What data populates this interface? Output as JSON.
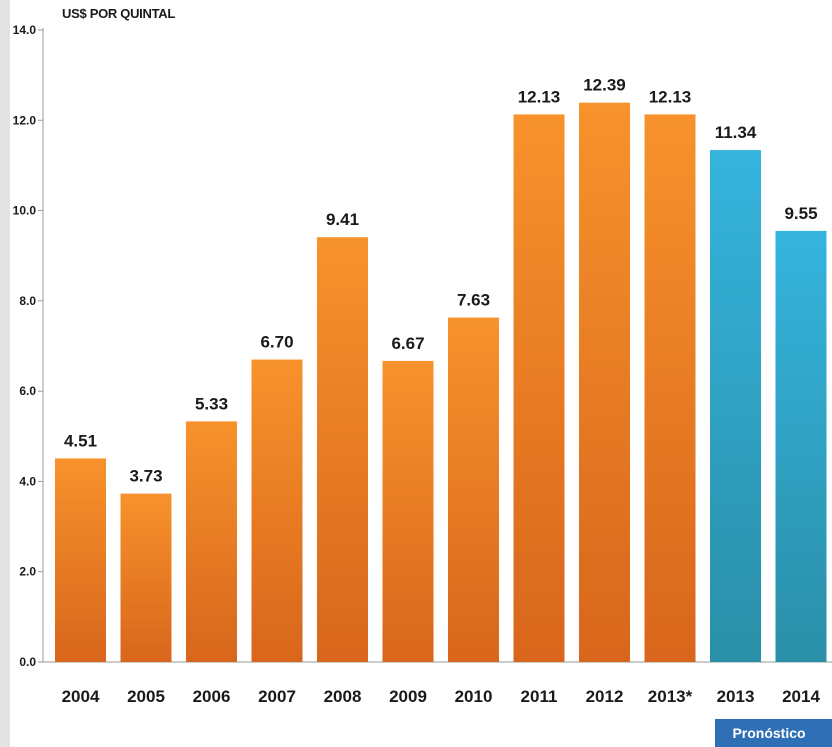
{
  "chart_data": {
    "type": "bar",
    "title": "",
    "xlabel": "",
    "ylabel": "US$ POR QUINTAL",
    "ylim": [
      0,
      14
    ],
    "yticks": [
      "0.0",
      "2.0",
      "4.0",
      "6.0",
      "8.0",
      "10.0",
      "12.0",
      "14.0"
    ],
    "categories": [
      "2004",
      "2005",
      "2006",
      "2007",
      "2008",
      "2009",
      "2010",
      "2011",
      "2012",
      "2013*",
      "2013",
      "2014"
    ],
    "values": [
      4.51,
      3.73,
      5.33,
      6.7,
      9.41,
      6.67,
      7.63,
      12.13,
      12.39,
      12.13,
      11.34,
      9.55
    ],
    "value_labels": [
      "4.51",
      "3.73",
      "5.33",
      "6.70",
      "9.41",
      "6.67",
      "7.63",
      "12.13",
      "12.39",
      "12.13",
      "11.34",
      "9.55"
    ],
    "forecast_flags": [
      false,
      false,
      false,
      false,
      false,
      false,
      false,
      false,
      false,
      false,
      true,
      true
    ],
    "forecast_label": "Pronóstico",
    "colors": {
      "actual_top": "#f7922c",
      "actual_bottom": "#d8661c",
      "forecast_top": "#35b4de",
      "forecast_bottom": "#2a8fa8",
      "badge": "#2f6fb5"
    },
    "grid": false,
    "legend": "none"
  }
}
